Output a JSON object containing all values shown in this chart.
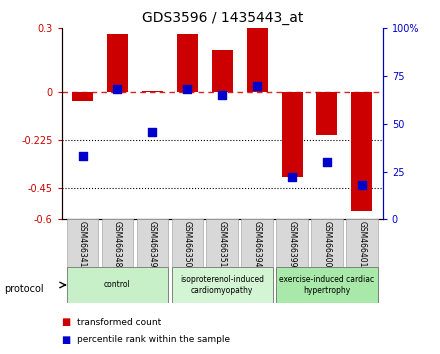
{
  "title": "GDS3596 / 1435443_at",
  "samples": [
    "GSM466341",
    "GSM466348",
    "GSM466349",
    "GSM466350",
    "GSM466351",
    "GSM466394",
    "GSM466399",
    "GSM466400",
    "GSM466401"
  ],
  "red_values": [
    -0.04,
    0.275,
    0.005,
    0.275,
    0.2,
    0.3,
    -0.4,
    -0.2,
    -0.56
  ],
  "blue_values": [
    33,
    68,
    46,
    68,
    65,
    70,
    22,
    30,
    18
  ],
  "ylim_left": [
    -0.6,
    0.3
  ],
  "ylim_right": [
    0,
    100
  ],
  "yticks_left": [
    0.3,
    0.0,
    -0.225,
    -0.45,
    -0.6
  ],
  "yticks_left_labels": [
    "0.3",
    "0",
    "-0.225",
    "-0.45",
    "-0.6"
  ],
  "yticks_right": [
    100,
    75,
    50,
    25,
    0
  ],
  "yticks_right_labels": [
    "100%",
    "75",
    "50",
    "25",
    "0"
  ],
  "hlines": [
    -0.225,
    -0.45
  ],
  "dashed_line_y": 0.0,
  "groups": [
    {
      "label": "control",
      "start": 0,
      "end": 3,
      "color": "#c8f0c8"
    },
    {
      "label": "isoproterenol-induced\ncardiomyopathy",
      "start": 3,
      "end": 6,
      "color": "#d4f5d4"
    },
    {
      "label": "exercise-induced cardiac\nhypertrophy",
      "start": 6,
      "end": 9,
      "color": "#a8e8a8"
    }
  ],
  "bar_color": "#cc0000",
  "dot_color": "#0000cc",
  "bar_width": 0.6,
  "dot_size": 40,
  "left_tick_color": "#cc0000",
  "right_tick_color": "#0000cc",
  "legend_red_label": "transformed count",
  "legend_blue_label": "percentile rank within the sample",
  "protocol_label": "protocol"
}
